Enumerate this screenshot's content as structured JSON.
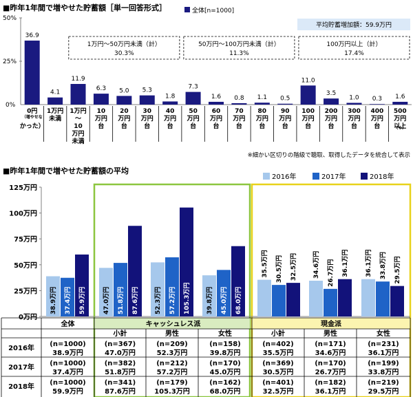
{
  "chart_data": [
    {
      "type": "bar",
      "title": "■昨年1年間で増やせた貯蓄額［単一回答形式］",
      "legend": "全体[n=1000]",
      "summary_box": "平均貯蓄増加額：59.9万円",
      "y_ticks": [
        "50%",
        "25%",
        "0%"
      ],
      "ylim": [
        0,
        50
      ],
      "categories": [
        [
          "0円",
          "（増やせな",
          "かった）"
        ],
        [
          "1万円",
          "未満"
        ],
        [
          "1万円",
          "～",
          "10",
          "万円",
          "未満"
        ],
        [
          "10",
          "万円",
          "台"
        ],
        [
          "20",
          "万円",
          "台"
        ],
        [
          "30",
          "万円",
          "台"
        ],
        [
          "40",
          "万円",
          "台"
        ],
        [
          "50",
          "万円",
          "台"
        ],
        [
          "60",
          "万円",
          "台"
        ],
        [
          "70",
          "万円",
          "台"
        ],
        [
          "80",
          "万円",
          "台"
        ],
        [
          "90",
          "万円",
          "台"
        ],
        [
          "100",
          "万円",
          "台"
        ],
        [
          "200",
          "万円",
          "台"
        ],
        [
          "300",
          "万円",
          "台"
        ],
        [
          "400",
          "万円",
          "台"
        ],
        [
          "500",
          "万円",
          "以上",
          "（※）"
        ]
      ],
      "values": [
        36.9,
        4.1,
        11.9,
        6.3,
        5.0,
        5.3,
        1.8,
        7.3,
        1.6,
        0.8,
        1.1,
        0.5,
        11.0,
        3.5,
        1.0,
        0.3,
        1.6
      ],
      "value_labels": [
        "36.9",
        "4.1",
        "11.9",
        "6.3",
        "5.0",
        "5.3",
        "1.8",
        "7.3",
        "1.6",
        "0.8",
        "1.1",
        "0.5",
        "11.0",
        "3.5",
        "1.0",
        "0.3",
        "1.6"
      ],
      "groups": [
        {
          "label": "1万円～50万円未満（計）",
          "value": "30.3%",
          "from": 2,
          "to": 6
        },
        {
          "label": "50万円～100万円未満（計）",
          "value": "11.3%",
          "from": 7,
          "to": 11
        },
        {
          "label": "100万円以上（計）",
          "value": "17.4%",
          "from": 12,
          "to": 16
        }
      ],
      "footnote": "※細かい区切りの階級で聴取、取得したデータを統合して表示",
      "colors": {
        "bar": "#1a1a80"
      }
    },
    {
      "type": "bar",
      "title": "■昨年1年間で増やせた貯蓄額の平均",
      "y_ticks": [
        "125万円",
        "100万円",
        "75万円",
        "50万円",
        "25万円",
        "0万円"
      ],
      "ylim": [
        0,
        125
      ],
      "legend": [
        "2016年",
        "2017年",
        "2018年"
      ],
      "categories": [
        "全体",
        "小計",
        "男性",
        "女性",
        "小計",
        "男性",
        "女性"
      ],
      "segments": [
        {
          "label": "キャッシュレス派",
          "from": 1,
          "to": 3
        },
        {
          "label": "現金派",
          "from": 4,
          "to": 6
        }
      ],
      "series": [
        {
          "name": "2016年",
          "values": [
            38.9,
            47.0,
            52.3,
            39.8,
            35.5,
            34.6,
            36.1
          ]
        },
        {
          "name": "2017年",
          "values": [
            37.4,
            51.8,
            57.2,
            45.0,
            30.5,
            26.7,
            33.8
          ]
        },
        {
          "name": "2018年",
          "values": [
            59.9,
            87.6,
            105.3,
            68.0,
            32.5,
            36.1,
            29.5
          ]
        }
      ],
      "value_labels": [
        [
          "38.9万円",
          "47.0万円",
          "52.3万円",
          "39.8万円",
          "35.5万円",
          "34.6万円",
          "36.1万円"
        ],
        [
          "37.4万円",
          "51.8万円",
          "57.2万円",
          "45.0万円",
          "30.5万円",
          "26.7万円",
          "33.8万円"
        ],
        [
          "59.9万円",
          "87.6万円",
          "105.3万円",
          "68.0万円",
          "32.5万円",
          "36.1万円",
          "29.5万円"
        ]
      ],
      "table": {
        "rows": [
          {
            "year": "2016年",
            "n": [
              "(n=1000)",
              "(n=367)",
              "(n=209)",
              "(n=158)",
              "(n=402)",
              "(n=171)",
              "(n=231)"
            ],
            "v": [
              "38.9万円",
              "47.0万円",
              "52.3万円",
              "39.8万円",
              "35.5万円",
              "34.6万円",
              "36.1万円"
            ]
          },
          {
            "year": "2017年",
            "n": [
              "(n=1000)",
              "(n=382)",
              "(n=212)",
              "(n=170)",
              "(n=369)",
              "(n=170)",
              "(n=199)"
            ],
            "v": [
              "37.4万円",
              "51.8万円",
              "57.2万円",
              "45.0万円",
              "30.5万円",
              "26.7万円",
              "33.8万円"
            ]
          },
          {
            "year": "2018年",
            "n": [
              "(n=1000)",
              "(n=341)",
              "(n=179)",
              "(n=162)",
              "(n=401)",
              "(n=182)",
              "(n=219)"
            ],
            "v": [
              "59.9万円",
              "87.6万円",
              "105.3万円",
              "68.0万円",
              "32.5万円",
              "36.1万円",
              "29.5万円"
            ]
          }
        ]
      },
      "colors": {
        "2016年": "#a6c8ec",
        "2017年": "#1f63c7",
        "2018年": "#12127a",
        "cashless": "#8cc63f",
        "cashless_fill": "#d9ecc0",
        "cash": "#e8d21a",
        "cash_fill": "#fbf4b0"
      }
    }
  ]
}
